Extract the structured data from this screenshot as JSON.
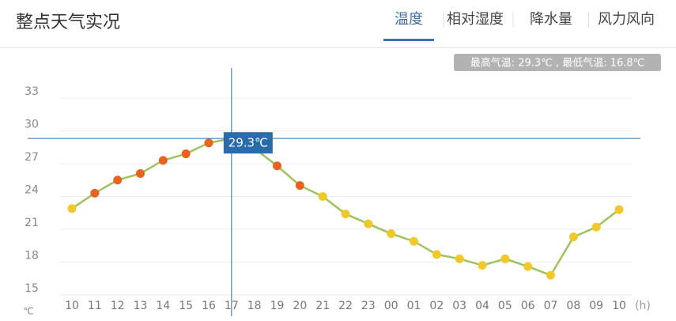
{
  "header": {
    "title": "整点天气实况",
    "tabs": [
      "温度",
      "相对湿度",
      "降水量",
      "风力风向"
    ],
    "active_tab": 0
  },
  "summary": "最高气温: 29.3℃ , 最低气温: 16.8℃",
  "chart_data": {
    "type": "line",
    "y_unit": "℃",
    "x_unit": "(h)",
    "categories": [
      "10",
      "11",
      "12",
      "13",
      "14",
      "15",
      "16",
      "17",
      "18",
      "19",
      "20",
      "21",
      "22",
      "23",
      "00",
      "01",
      "02",
      "03",
      "04",
      "05",
      "06",
      "07",
      "08",
      "09",
      "10"
    ],
    "series": [
      {
        "name": "温度",
        "color": "#9dc35b",
        "values": [
          22.9,
          24.3,
          25.5,
          26.1,
          27.3,
          27.9,
          28.9,
          29.3,
          28.4,
          26.8,
          25.0,
          24.0,
          22.4,
          21.5,
          20.6,
          19.9,
          18.7,
          18.3,
          17.7,
          18.3,
          17.6,
          16.8,
          20.3,
          21.2,
          22.8
        ],
        "point_colors": [
          "#f1c82a",
          "#e8641e",
          "#e8641e",
          "#e8641e",
          "#e8641e",
          "#e8641e",
          "#e8641e",
          "#e8641e",
          "#e8641e",
          "#e8641e",
          "#e8641e",
          "#f1c82a",
          "#f1c82a",
          "#f1c82a",
          "#f1c82a",
          "#f1c82a",
          "#f1c82a",
          "#f1c82a",
          "#f1c82a",
          "#f1c82a",
          "#f1c82a",
          "#f1c82a",
          "#f1c82a",
          "#f1c82a",
          "#f1c82a"
        ]
      }
    ],
    "ylim": [
      15,
      33
    ],
    "yticks": [
      15,
      18,
      21,
      24,
      27,
      30,
      33
    ],
    "grid": true,
    "tooltip": "29.3℃"
  }
}
